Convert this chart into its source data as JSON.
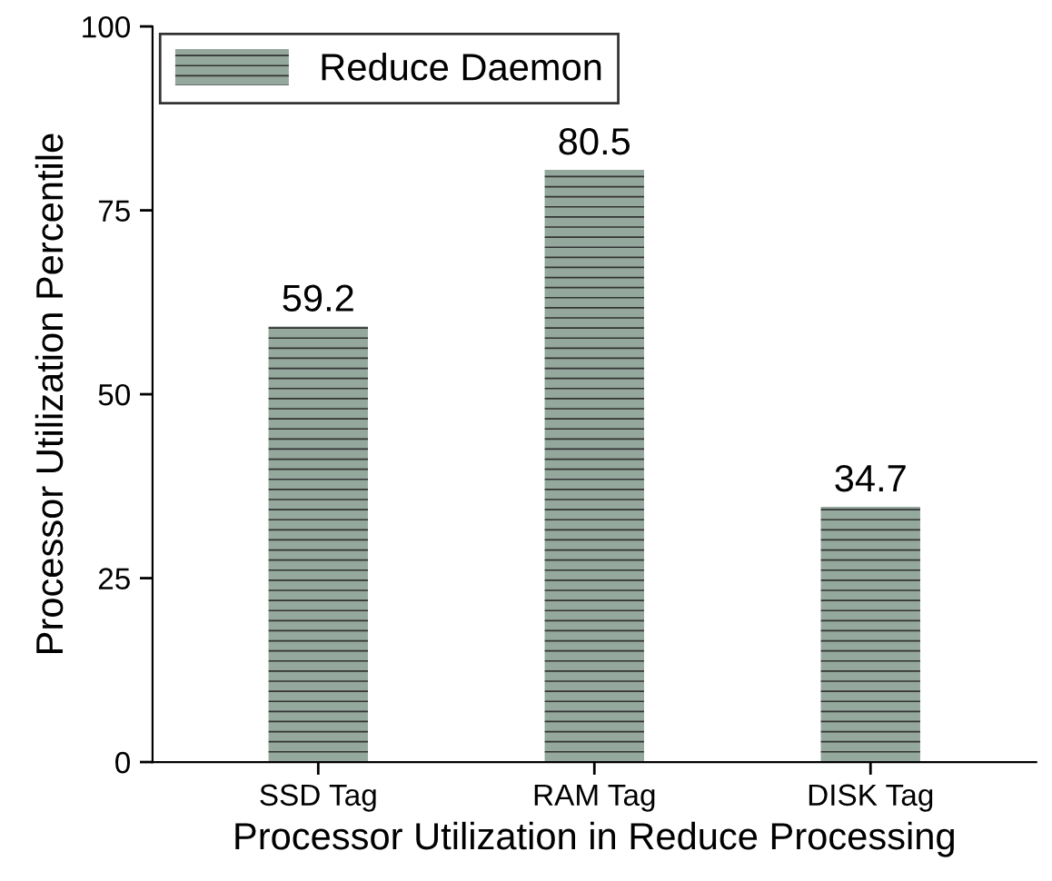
{
  "chart_data": {
    "type": "bar",
    "xlabel": "Processor Utilization in Reduce Processing",
    "ylabel": "Processor Utilization Percentile",
    "categories": [
      "SSD Tag",
      "RAM Tag",
      "DISK Tag"
    ],
    "series": [
      {
        "name": "Reduce Daemon",
        "color": "#94a89d",
        "values": [
          59.2,
          80.5,
          34.7
        ]
      }
    ],
    "ylim": [
      0,
      100
    ],
    "yticks": [
      0,
      25,
      50,
      75,
      100
    ],
    "grid": false,
    "legend": "top left",
    "data_labels": true
  }
}
